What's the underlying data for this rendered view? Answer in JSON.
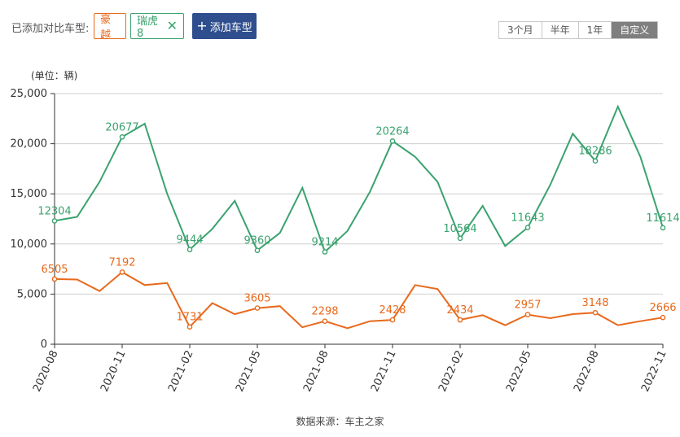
{
  "header": {
    "compare_label": "已添加对比车型:",
    "chips": [
      {
        "label": "豪越",
        "color": "#e8691c"
      },
      {
        "label": "瑞虎8",
        "color": "#3aa26f"
      }
    ],
    "add_button": "添加车型",
    "ranges": [
      "3个月",
      "半年",
      "1年",
      "自定义"
    ],
    "active_range": "自定义"
  },
  "chart_data": {
    "type": "line",
    "ylabel": "(单位：辆)",
    "ylim": [
      0,
      25000
    ],
    "yticks": [
      0,
      5000,
      10000,
      15000,
      20000,
      25000
    ],
    "ytick_labels": [
      "0",
      "5,000",
      "10,000",
      "15,000",
      "20,000",
      "25,000"
    ],
    "x": [
      "2020-08",
      "2020-09",
      "2020-10",
      "2020-11",
      "2020-12",
      "2021-01",
      "2021-02",
      "2021-03",
      "2021-04",
      "2021-05",
      "2021-06",
      "2021-07",
      "2021-08",
      "2021-09",
      "2021-10",
      "2021-11",
      "2021-12",
      "2022-01",
      "2022-02",
      "2022-03",
      "2022-04",
      "2022-05",
      "2022-06",
      "2022-07",
      "2022-08",
      "2022-09",
      "2022-10",
      "2022-11"
    ],
    "xtick_labels": [
      "2020-08",
      "2020-11",
      "2021-02",
      "2021-05",
      "2021-08",
      "2021-11",
      "2022-02",
      "2022-05",
      "2022-08",
      "2022-11"
    ],
    "grid": true,
    "series": [
      {
        "name": "瑞虎8",
        "color": "#3aa26f",
        "values": [
          12304,
          12700,
          16200,
          20677,
          22000,
          15000,
          9444,
          11500,
          14300,
          9360,
          11100,
          15600,
          9214,
          11300,
          15200,
          20264,
          18700,
          16200,
          10564,
          13800,
          9800,
          11643,
          15900,
          21000,
          18286,
          23700,
          18700,
          11614
        ],
        "labeled": {
          "0": 12304,
          "3": 20677,
          "6": 9444,
          "9": 9360,
          "12": 9214,
          "15": 20264,
          "18": 10564,
          "21": 11643,
          "24": 18286,
          "27": 11614
        }
      },
      {
        "name": "豪越",
        "color": "#e8691c",
        "values": [
          6505,
          6450,
          5300,
          7192,
          5900,
          6100,
          1731,
          4100,
          3000,
          3605,
          3800,
          1700,
          2298,
          1600,
          2300,
          2428,
          5900,
          5500,
          2434,
          2900,
          1900,
          2957,
          2600,
          3000,
          3148,
          1900,
          2300,
          2666
        ],
        "labeled": {
          "0": 6505,
          "3": 7192,
          "6": 1731,
          "9": 3605,
          "12": 2298,
          "15": 2428,
          "18": 2434,
          "21": 2957,
          "24": 3148,
          "27": 2666
        }
      }
    ]
  },
  "footer": {
    "source": "数据来源：车主之家"
  }
}
